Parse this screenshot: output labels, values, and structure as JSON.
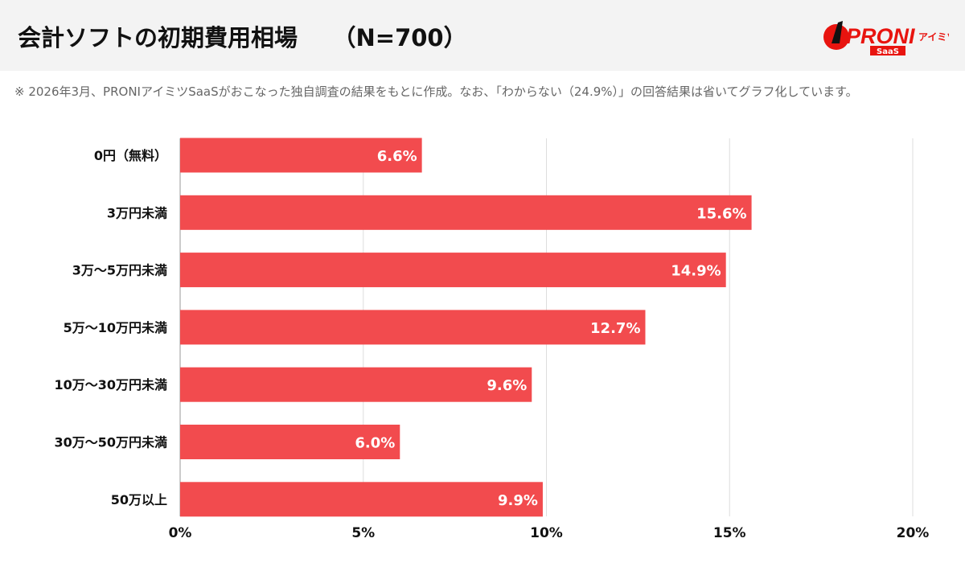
{
  "header": {
    "title": "会計ソフトの初期費用相場　　（N=700）"
  },
  "logo": {
    "text": "PRONI",
    "sub": "アイミツ",
    "badge": "SaaS",
    "color": "#e8140f"
  },
  "note": "※ 2026年3月、PRONIアイミツSaaSがおこなった独自調査の結果をもとに作成。なお、「わからない（24.9%）」の回答結果は省いてグラフ化しています。",
  "chart_data": {
    "type": "bar",
    "orientation": "horizontal",
    "categories": [
      "0円（無料）",
      "3万円未満",
      "3万〜5万円未満",
      "5万〜10万円未満",
      "10万〜30万円未満",
      "30万〜50万円未満",
      "50万以上"
    ],
    "values": [
      6.6,
      15.6,
      14.9,
      12.7,
      9.6,
      6.0,
      9.9
    ],
    "data_labels": [
      "6.6%",
      "15.6%",
      "14.9%",
      "12.7%",
      "9.6%",
      "6.0%",
      "9.9%"
    ],
    "xlim": [
      0,
      20
    ],
    "xticks": [
      0,
      5,
      10,
      15,
      20
    ],
    "xtick_labels": [
      "0%",
      "5%",
      "10%",
      "15%",
      "20%"
    ],
    "grid": true,
    "bar_color": "#f24b4e"
  }
}
